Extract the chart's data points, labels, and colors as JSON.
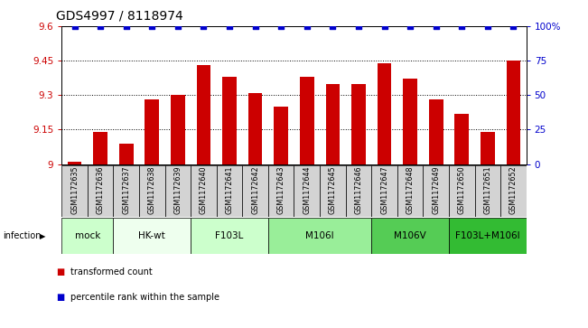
{
  "title": "GDS4997 / 8118974",
  "samples": [
    "GSM1172635",
    "GSM1172636",
    "GSM1172637",
    "GSM1172638",
    "GSM1172639",
    "GSM1172640",
    "GSM1172641",
    "GSM1172642",
    "GSM1172643",
    "GSM1172644",
    "GSM1172645",
    "GSM1172646",
    "GSM1172647",
    "GSM1172648",
    "GSM1172649",
    "GSM1172650",
    "GSM1172651",
    "GSM1172652"
  ],
  "bar_values": [
    9.01,
    9.14,
    9.09,
    9.28,
    9.3,
    9.43,
    9.38,
    9.31,
    9.25,
    9.38,
    9.35,
    9.35,
    9.44,
    9.37,
    9.28,
    9.22,
    9.14,
    9.45
  ],
  "percentile_values": [
    100,
    100,
    100,
    100,
    100,
    100,
    100,
    100,
    100,
    100,
    100,
    100,
    100,
    100,
    100,
    100,
    100,
    100
  ],
  "bar_color": "#cc0000",
  "dot_color": "#0000cc",
  "ylim_left": [
    9.0,
    9.6
  ],
  "ylim_right": [
    0,
    100
  ],
  "yticks_left": [
    9.0,
    9.15,
    9.3,
    9.45,
    9.6
  ],
  "yticks_right": [
    0,
    25,
    50,
    75,
    100
  ],
  "ytick_labels_left": [
    "9",
    "9.15",
    "9.3",
    "9.45",
    "9.6"
  ],
  "ytick_labels_right": [
    "0",
    "25",
    "50",
    "75",
    "100%"
  ],
  "grid_lines": [
    9.15,
    9.3,
    9.45
  ],
  "groups": [
    {
      "label": "mock",
      "start": 0,
      "end": 1,
      "color": "#ccffcc"
    },
    {
      "label": "HK-wt",
      "start": 2,
      "end": 4,
      "color": "#eeffee"
    },
    {
      "label": "F103L",
      "start": 5,
      "end": 7,
      "color": "#ccffcc"
    },
    {
      "label": "M106I",
      "start": 8,
      "end": 11,
      "color": "#99ee99"
    },
    {
      "label": "M106V",
      "start": 12,
      "end": 14,
      "color": "#55cc55"
    },
    {
      "label": "F103L+M106I",
      "start": 15,
      "end": 17,
      "color": "#33bb33"
    }
  ],
  "infection_label": "infection",
  "legend_items": [
    {
      "color": "#cc0000",
      "label": "transformed count"
    },
    {
      "color": "#0000cc",
      "label": "percentile rank within the sample"
    }
  ],
  "bg_color": "#ffffff",
  "plot_bg_color": "#ffffff",
  "tick_color_left": "#cc0000",
  "tick_color_right": "#0000cc",
  "title_fontsize": 10,
  "tick_fontsize": 7.5,
  "sample_fontsize": 5.8,
  "group_fontsize": 7.5
}
